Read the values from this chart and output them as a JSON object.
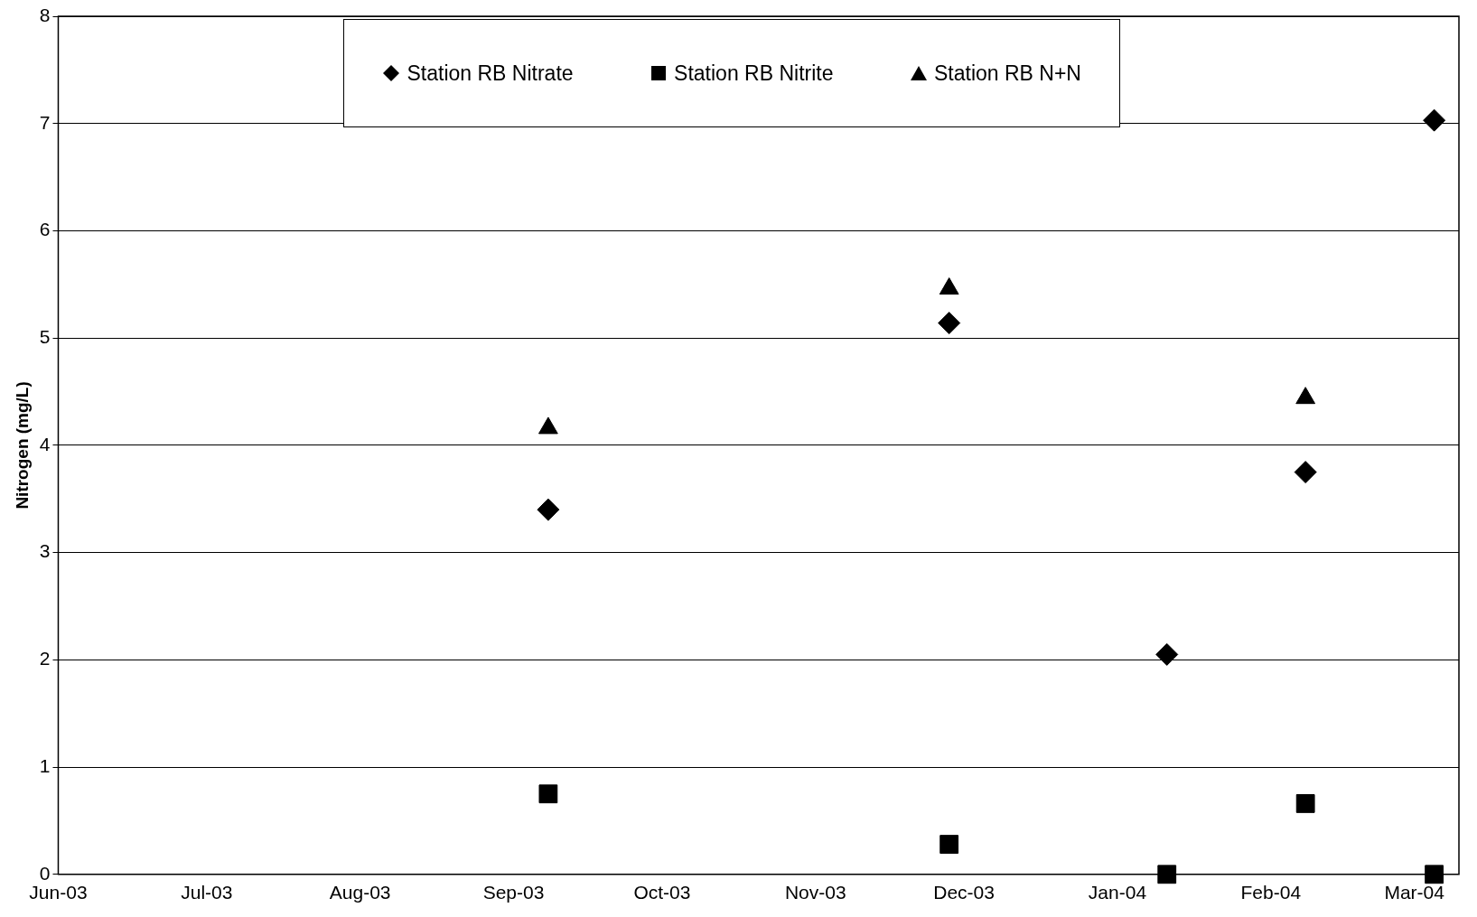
{
  "chart_data": {
    "type": "scatter",
    "ylabel": "Nitrogen (mg/L)",
    "x": [
      "2003-09-08",
      "2003-11-28",
      "2004-01-11",
      "2004-02-08",
      "2004-03-05"
    ],
    "series": [
      {
        "name": "Station RB Nitrate",
        "color": "#000000",
        "marker": "diamond",
        "values": [
          3.4,
          5.14,
          2.05,
          3.75,
          7.03
        ]
      },
      {
        "name": "Station RB Nitrite",
        "color": "#000000",
        "marker": "square",
        "values": [
          0.75,
          0.28,
          0.0,
          0.66,
          0.0
        ]
      },
      {
        "name": "Station RB N+N",
        "color": "#000000",
        "marker": "triangle",
        "values": [
          4.16,
          5.46,
          null,
          4.44,
          null
        ]
      }
    ],
    "xlim": [
      "2003-06-01",
      "2004-03-10"
    ],
    "xticks": [
      {
        "value": "2003-06-01",
        "label": "Jun-03"
      },
      {
        "value": "2003-07-01",
        "label": "Jul-03"
      },
      {
        "value": "2003-08-01",
        "label": "Aug-03"
      },
      {
        "value": "2003-09-01",
        "label": "Sep-03"
      },
      {
        "value": "2003-10-01",
        "label": "Oct-03"
      },
      {
        "value": "2003-11-01",
        "label": "Nov-03"
      },
      {
        "value": "2003-12-01",
        "label": "Dec-03"
      },
      {
        "value": "2004-01-01",
        "label": "Jan-04"
      },
      {
        "value": "2004-02-01",
        "label": "Feb-04"
      },
      {
        "value": "2004-03-01",
        "label": "Mar-04"
      }
    ],
    "ylim": [
      0,
      8
    ],
    "yticks": [
      0,
      1,
      2,
      3,
      4,
      5,
      6,
      7,
      8
    ],
    "grid": "y",
    "legend": "top"
  }
}
